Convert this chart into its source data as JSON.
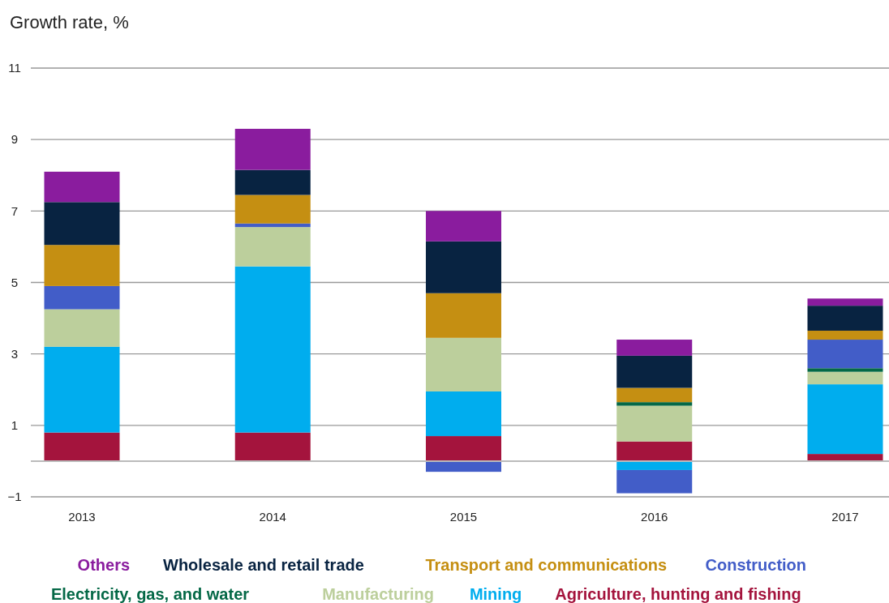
{
  "chart_data": {
    "type": "bar",
    "stacked": true,
    "ylabel": "Growth rate, %",
    "categories": [
      "2013",
      "2014",
      "2015",
      "2016",
      "2017"
    ],
    "series": [
      {
        "name": "Agriculture, hunting and fishing",
        "color": "#a4143d",
        "values": [
          0.8,
          0.8,
          0.7,
          0.55,
          0.2
        ]
      },
      {
        "name": "Mining",
        "color": "#00adee",
        "values": [
          2.4,
          4.65,
          1.25,
          -0.25,
          1.95
        ]
      },
      {
        "name": "Manufacturing",
        "color": "#bccf9c",
        "values": [
          1.05,
          1.1,
          1.5,
          1.0,
          0.35
        ]
      },
      {
        "name": "Electricity, gas, and water",
        "color": "#046846",
        "values": [
          0,
          0,
          0,
          0.1,
          0.1
        ]
      },
      {
        "name": "Construction",
        "color": "#425dc8",
        "values": [
          0.65,
          0.1,
          -0.3,
          -0.65,
          0.8
        ]
      },
      {
        "name": "Transport and communications",
        "color": "#c58f12",
        "values": [
          1.15,
          0.8,
          1.25,
          0.4,
          0.25
        ]
      },
      {
        "name": "Wholesale and retail trade",
        "color": "#082341",
        "values": [
          1.2,
          0.7,
          1.45,
          0.9,
          0.7
        ]
      },
      {
        "name": "Others",
        "color": "#8a1c9e",
        "values": [
          0.85,
          1.15,
          0.85,
          0.45,
          0.2
        ]
      }
    ],
    "ylim": [
      -1,
      11
    ],
    "yticks": [
      {
        "value": -1,
        "label": "−1"
      },
      1,
      3,
      5,
      7,
      9,
      11
    ],
    "grid": "y",
    "legend": "bottom"
  }
}
